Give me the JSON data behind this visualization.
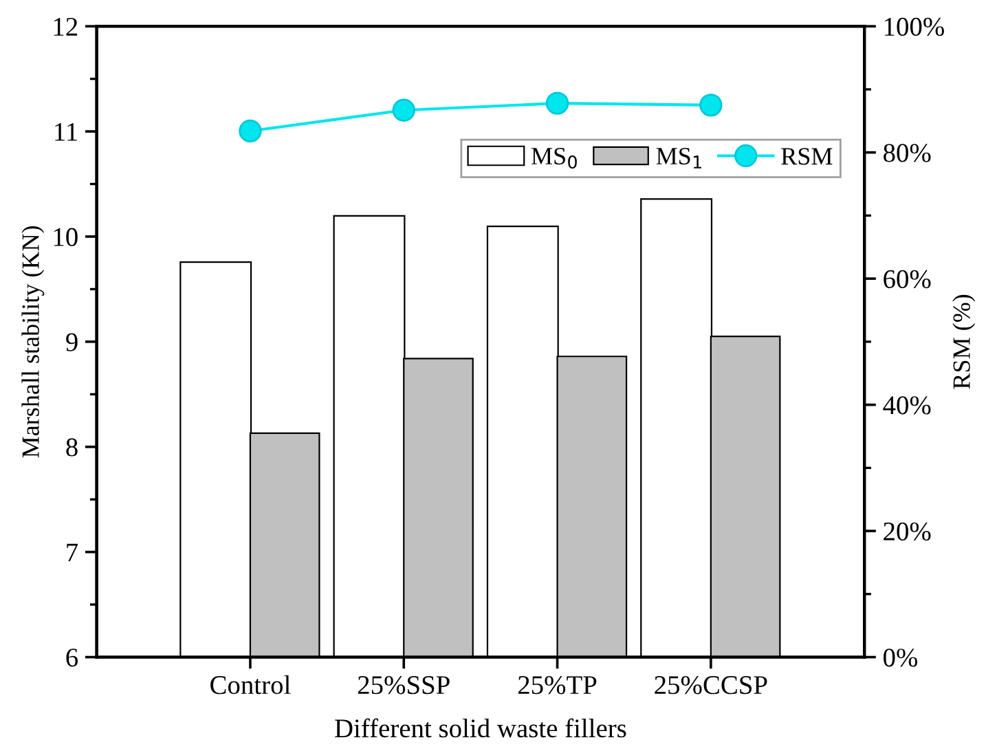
{
  "chart_data": {
    "type": "bar",
    "xlabel": "Different solid waste fillers",
    "ylabel": "Marshall stability (KN)",
    "y2label": "RSM (%)",
    "categories": [
      "Control",
      "25%SSP",
      "25%TP",
      "25%CCSP"
    ],
    "series": [
      {
        "name": "MS$_{0}$",
        "color": "#ffffff",
        "values": [
          9.75,
          10.19,
          10.09,
          10.35
        ]
      },
      {
        "name": "MS$_{1}$",
        "color": "#c0c0c0",
        "values": [
          8.13,
          8.84,
          8.86,
          9.05
        ]
      },
      {
        "name": "RSM",
        "type": "line",
        "axis": "y2",
        "color": "#00e5ee",
        "marker": "circle",
        "values": [
          83.4,
          86.7,
          87.8,
          87.5
        ]
      }
    ],
    "ylim": [
      6,
      12
    ],
    "yticks": [
      6,
      7,
      8,
      9,
      10,
      11,
      12
    ],
    "y2lim": [
      0,
      100
    ],
    "y2ticks": [
      {
        "value": 0,
        "label": "0%"
      },
      {
        "value": 20,
        "label": "20%"
      },
      {
        "value": 40,
        "label": "40%"
      },
      {
        "value": 60,
        "label": "60%"
      },
      {
        "value": 80,
        "label": "80%"
      },
      {
        "value": 100,
        "label": "100%"
      }
    ],
    "legend": "top right",
    "grid": false
  }
}
